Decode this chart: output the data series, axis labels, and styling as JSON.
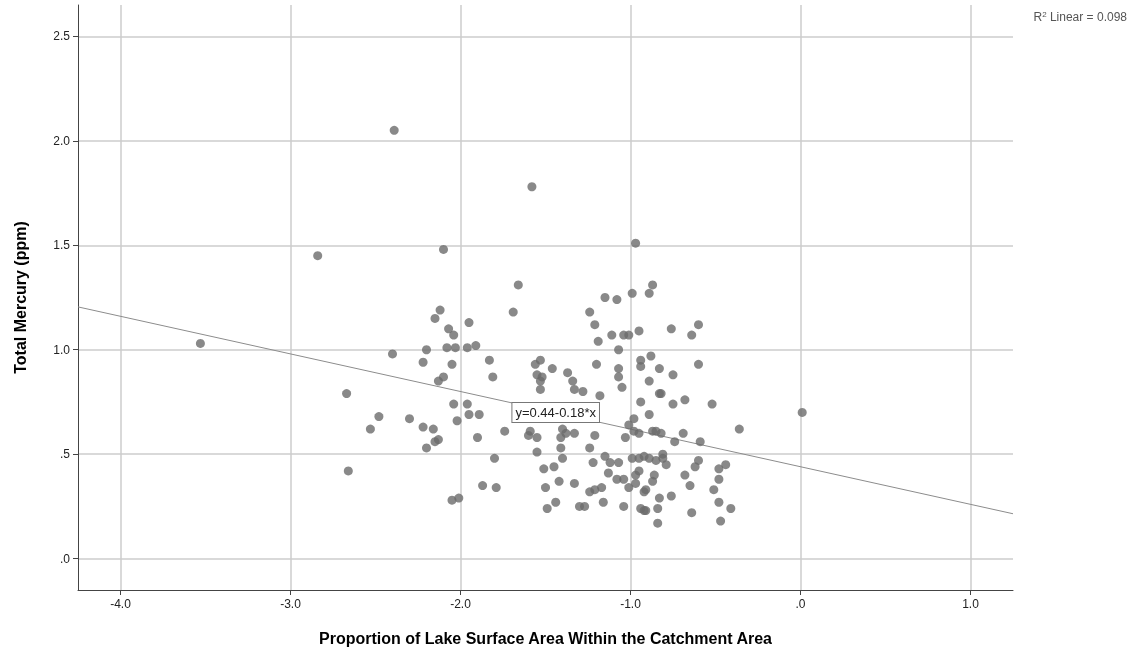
{
  "chart_data": {
    "type": "scatter",
    "xlabel": "Proportion of Lake Surface Area Within the Catchment Area",
    "ylabel": "Total Mercury (ppm)",
    "annotations": [
      {
        "text": "y=0.44-0.18*x",
        "x": -1.44,
        "y": 0.7
      },
      "R$^{2}$ Linear = 0.098"
    ],
    "xlim": [
      -4.25,
      1.25
    ],
    "ylim": [
      -0.15,
      2.65
    ],
    "xticks": [
      {
        "value": -4,
        "label": "-4.0"
      },
      {
        "value": -3,
        "label": "-3.0"
      },
      {
        "value": -2,
        "label": "-2.0"
      },
      {
        "value": -1,
        "label": "-1.0"
      },
      {
        "value": 0,
        "label": ".0"
      },
      {
        "value": 1,
        "label": "1.0"
      }
    ],
    "yticks": [
      {
        "value": 0,
        "label": ".0"
      },
      {
        "value": 0.5,
        "label": ".5"
      },
      {
        "value": 1,
        "label": "1.0"
      },
      {
        "value": 1.5,
        "label": "1.5"
      },
      {
        "value": 2,
        "label": "2.0"
      },
      {
        "value": 2.5,
        "label": "2.5"
      }
    ],
    "grid": true,
    "marker": "circle",
    "series": [
      {
        "color": "#6b6b6b",
        "x": [
          -3.53,
          -2.84,
          -2.39,
          -1.58,
          -0.97,
          -2.1,
          -2.12,
          -2.15,
          -2.07,
          -2.04,
          -1.95,
          -2.4,
          -2.2,
          -2.22,
          -2.08,
          -2.03,
          -1.96,
          -1.91,
          -2.05,
          -1.83,
          -1.81,
          -2.1,
          -2.13,
          -2.67,
          -2.48,
          -2.53,
          -2.3,
          -2.22,
          -2.16,
          -2.13,
          -2.15,
          -2.2,
          -2.04,
          -1.96,
          -2.02,
          -1.95,
          -1.89,
          -1.9,
          -1.8,
          -1.87,
          -1.79,
          -2.05,
          -2.01,
          -2.66,
          -1.66,
          -1.69,
          -1.15,
          -1.08,
          -0.99,
          -0.87,
          -0.89,
          -1.24,
          -1.21,
          -1.19,
          -1.11,
          -1.04,
          -1.01,
          -0.95,
          -1.07,
          -1.2,
          -1.07,
          -1.07,
          -1.05,
          -0.94,
          -0.94,
          -0.88,
          -0.89,
          -1.56,
          -1.53,
          -1.46,
          -1.55,
          -1.52,
          -1.53,
          -1.53,
          -1.37,
          -1.34,
          -1.33,
          -1.28,
          -1.18,
          -0.94,
          -0.89,
          -0.98,
          -1.01,
          -0.98,
          -0.95,
          -0.87,
          -1.03,
          -1.74,
          -1.59,
          -1.6,
          -1.55,
          -1.4,
          -1.38,
          -1.41,
          -1.33,
          -1.21,
          -1.55,
          -1.41,
          -1.4,
          -1.24,
          -1.22,
          -1.15,
          -1.12,
          -1.07,
          -0.99,
          -0.95,
          -0.89,
          -1.51,
          -1.45,
          -1.42,
          -1.5,
          -1.33,
          -1.24,
          -1.21,
          -1.17,
          -1.13,
          -1.08,
          -1.04,
          -0.97,
          -0.97,
          -1.01,
          -0.91,
          -1.16,
          -1.44,
          -1.49,
          -1.3,
          -1.27,
          -1.04,
          -0.94,
          -0.91,
          -0.76,
          -0.6,
          -0.64,
          -0.83,
          -0.75,
          -0.6,
          -0.83,
          -0.82,
          -0.75,
          -0.68,
          -0.52,
          0.01,
          -0.36,
          -0.85,
          -0.82,
          -0.74,
          -0.69,
          -0.59,
          -0.81,
          -0.81,
          -0.92,
          -0.85,
          -0.79,
          -0.6,
          -0.62,
          -0.48,
          -0.44,
          -0.95,
          -0.86,
          -0.87,
          -0.68,
          -0.65,
          -0.48,
          -0.92,
          -0.76,
          -0.83,
          -0.51,
          -0.48,
          -0.41,
          -0.92,
          -0.84,
          -0.64,
          -0.84,
          -0.47
        ],
        "values": [
          1.03,
          1.45,
          2.05,
          1.78,
          1.51,
          1.48,
          1.19,
          1.15,
          1.1,
          1.07,
          1.13,
          0.98,
          1.0,
          0.94,
          1.01,
          1.01,
          1.01,
          1.02,
          0.93,
          0.95,
          0.87,
          0.87,
          0.85,
          0.79,
          0.68,
          0.62,
          0.67,
          0.63,
          0.62,
          0.57,
          0.56,
          0.53,
          0.74,
          0.74,
          0.66,
          0.69,
          0.69,
          0.58,
          0.48,
          0.35,
          0.34,
          0.28,
          0.29,
          0.42,
          1.31,
          1.18,
          1.25,
          1.24,
          1.27,
          1.31,
          1.27,
          1.18,
          1.12,
          1.04,
          1.07,
          1.07,
          1.07,
          1.09,
          1.0,
          0.93,
          0.91,
          0.87,
          0.82,
          0.95,
          0.92,
          0.97,
          0.85,
          0.93,
          0.95,
          0.91,
          0.88,
          0.87,
          0.85,
          0.81,
          0.89,
          0.85,
          0.81,
          0.8,
          0.78,
          0.75,
          0.69,
          0.67,
          0.64,
          0.61,
          0.6,
          0.61,
          0.58,
          0.61,
          0.61,
          0.59,
          0.58,
          0.62,
          0.6,
          0.58,
          0.6,
          0.59,
          0.51,
          0.53,
          0.48,
          0.53,
          0.46,
          0.49,
          0.46,
          0.46,
          0.48,
          0.48,
          0.48,
          0.43,
          0.44,
          0.37,
          0.34,
          0.36,
          0.32,
          0.33,
          0.34,
          0.41,
          0.38,
          0.38,
          0.4,
          0.36,
          0.34,
          0.33,
          0.27,
          0.27,
          0.24,
          0.25,
          0.25,
          0.25,
          0.24,
          0.23,
          1.1,
          1.12,
          1.07,
          0.91,
          0.88,
          0.93,
          0.79,
          0.79,
          0.74,
          0.76,
          0.74,
          0.7,
          0.62,
          0.61,
          0.6,
          0.56,
          0.6,
          0.56,
          0.5,
          0.48,
          0.49,
          0.47,
          0.45,
          0.47,
          0.44,
          0.43,
          0.45,
          0.42,
          0.4,
          0.37,
          0.4,
          0.35,
          0.38,
          0.32,
          0.3,
          0.29,
          0.33,
          0.27,
          0.24,
          0.23,
          0.24,
          0.22,
          0.17,
          0.18
        ]
      },
      {
        "type": "line",
        "color": "#8c8c8c",
        "x": [
          -4.25,
          1.25
        ],
        "values": [
          1.205,
          0.215
        ],
        "marker": "none",
        "line_style": "solid"
      }
    ]
  }
}
